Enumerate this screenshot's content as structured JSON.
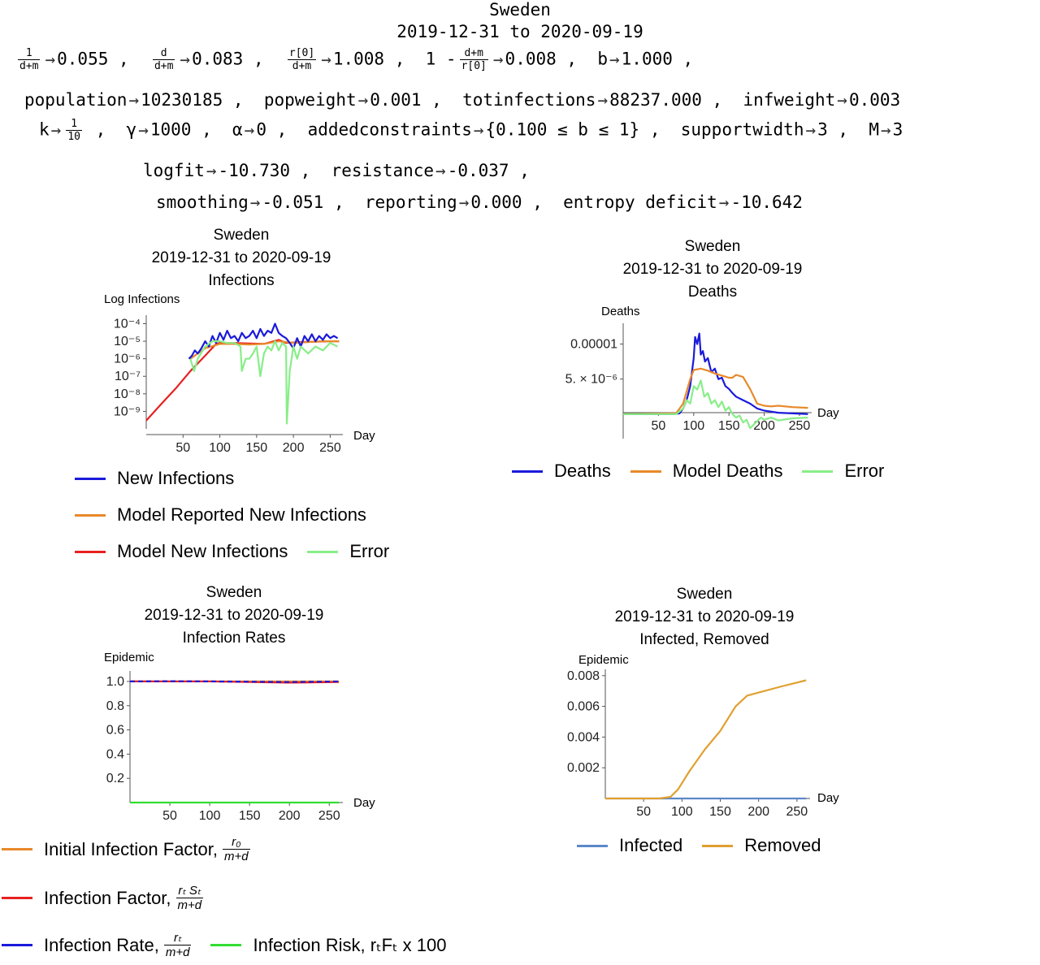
{
  "header": {
    "country": "Sweden",
    "date_range": "2019-12-31 to 2020-09-19",
    "row1": [
      {
        "num": "1",
        "den": "d+m",
        "value": "0.055"
      },
      {
        "num": "d",
        "den": "d+m",
        "value": "0.083"
      },
      {
        "num": "r[0]",
        "den": "d+m",
        "value": "1.008"
      },
      {
        "prefix": "1 -",
        "num": "d+m",
        "den": "r[0]",
        "value": "0.008"
      },
      {
        "name": "b",
        "value": "1.000"
      }
    ],
    "row2": [
      {
        "name": "population",
        "value": "10230185"
      },
      {
        "name": "popweight",
        "value": "0.001"
      },
      {
        "name": "totinfections",
        "value": "88237.000"
      },
      {
        "name": "infweight",
        "value": "0.003"
      }
    ],
    "row3": {
      "k_name": "k",
      "k_num": "1",
      "k_den": "10",
      "gamma_name": "γ",
      "gamma_value": "1000",
      "alpha_name": "α",
      "alpha_value": "0",
      "ac_name": "addedconstraints",
      "ac_value": "{0.100 ≤ b ≤ 1}",
      "sw_name": "supportwidth",
      "sw_value": "3",
      "m_name": "M",
      "m_value": "3"
    },
    "row4": [
      {
        "name": "logfit",
        "value": "-10.730"
      },
      {
        "name": "resistance",
        "value": "-0.037"
      }
    ],
    "row5": [
      {
        "name": "smoothing",
        "value": "-0.051"
      },
      {
        "name": "reporting",
        "value": "0.000"
      },
      {
        "name": "entropy deficit",
        "value": "-10.642"
      }
    ]
  },
  "legends": {
    "infections": [
      {
        "label": "New Infections",
        "color": "#1a1adb"
      },
      {
        "label": "Model Reported New Infections",
        "color": "#e8892a"
      },
      {
        "label": "Model New Infections",
        "color": "#e82020"
      },
      {
        "label": "Error",
        "color": "#88ee88"
      }
    ],
    "deaths": [
      {
        "label": "Deaths",
        "color": "#1a1adb"
      },
      {
        "label": "Model Deaths",
        "color": "#e8892a"
      },
      {
        "label": "Error",
        "color": "#88ee88"
      }
    ],
    "rates": [
      {
        "label": "Initial Infection Factor,",
        "color": "#e8892a",
        "num": "r₀",
        "den": "m+d"
      },
      {
        "label": "Infection Factor,",
        "color": "#e82020",
        "num": "rₜ Sₜ",
        "den": "m+d"
      },
      {
        "label": "Infection Rate,",
        "color": "#1a1adb",
        "num": "rₜ",
        "den": "m+d"
      },
      {
        "label": "Infection Risk, rₜFₜ x 100",
        "color": "#33dd33"
      }
    ],
    "epidemic": [
      {
        "label": "Infected",
        "color": "#5b88c8"
      },
      {
        "label": "Removed",
        "color": "#e0a030"
      }
    ]
  },
  "chart_data": [
    {
      "type": "line",
      "title": "Sweden",
      "subtitle": "2019-12-31 to 2020-09-19",
      "subtitle2": "Infections",
      "xlabel": "Day",
      "ylabel": "Log Infections",
      "yscale": "log",
      "xlim": [
        0,
        265
      ],
      "ylim": [
        1e-10,
        0.0002
      ],
      "xticks": [
        50,
        100,
        150,
        200,
        250
      ],
      "xtick_labels": [
        "50",
        "100",
        "150",
        "200",
        "250"
      ],
      "yticks": [
        1e-09,
        1e-08,
        1e-07,
        1e-06,
        1e-05,
        0.0001
      ],
      "ytick_labels": [
        "10⁻⁹",
        "10⁻⁸",
        "10⁻⁷",
        "10⁻⁶",
        "10⁻⁵",
        "10⁻⁴"
      ],
      "series": [
        {
          "name": "Model New Infections",
          "color": "#e82020",
          "x": [
            0,
            20,
            40,
            60,
            80,
            95,
            100,
            120,
            140,
            160,
            180,
            190,
            210,
            230,
            250,
            262
          ],
          "y": [
            3e-10,
            2.5e-09,
            2e-08,
            2e-07,
            1.5e-06,
            7e-06,
            8e-06,
            8e-06,
            7.5e-06,
            7e-06,
            1.2e-05,
            8e-06,
            9e-06,
            9.5e-06,
            1e-05,
            1e-05
          ]
        },
        {
          "name": "Model Reported New Infections",
          "color": "#e8892a",
          "x": [
            60,
            80,
            100,
            120,
            140,
            160,
            180,
            200,
            220,
            240,
            262
          ],
          "y": [
            1e-06,
            4e-06,
            7e-06,
            7e-06,
            6.5e-06,
            7e-06,
            1e-05,
            8e-06,
            9e-06,
            1e-05,
            1e-05
          ]
        },
        {
          "name": "New Infections",
          "color": "#1a1adb",
          "x": [
            58,
            62,
            66,
            70,
            75,
            80,
            85,
            90,
            95,
            100,
            105,
            110,
            115,
            120,
            125,
            130,
            135,
            140,
            145,
            150,
            155,
            160,
            165,
            170,
            175,
            180,
            185,
            190,
            195,
            200,
            205,
            210,
            215,
            220,
            225,
            230,
            235,
            240,
            245,
            250,
            255,
            260
          ],
          "y": [
            1e-06,
            1.5e-06,
            3e-06,
            2e-06,
            4e-06,
            1e-05,
            5e-06,
            2e-05,
            8e-06,
            3e-05,
            1.2e-05,
            4e-05,
            1.5e-05,
            2e-05,
            1e-05,
            3e-05,
            1.5e-05,
            2e-05,
            4e-05,
            1.5e-05,
            5e-05,
            2e-05,
            4e-05,
            3e-05,
            0.0001,
            3e-05,
            2e-05,
            1.5e-05,
            8e-06,
            4e-06,
            1.5e-05,
            5e-06,
            2e-05,
            1e-05,
            2.5e-05,
            1e-05,
            2e-05,
            1.2e-05,
            2.5e-05,
            1.5e-05,
            2e-05,
            1.5e-05
          ]
        },
        {
          "name": "Error",
          "color": "#88ee88",
          "x": [
            60,
            65,
            70,
            80,
            90,
            100,
            110,
            120,
            128,
            130,
            135,
            140,
            145,
            150,
            155,
            160,
            165,
            170,
            175,
            180,
            185,
            190,
            191,
            195,
            200,
            205,
            210,
            220,
            230,
            240,
            250,
            260
          ],
          "y": [
            1e-06,
            2e-07,
            1e-06,
            5e-06,
            1e-05,
            1e-05,
            8e-06,
            8e-06,
            5e-06,
            2e-07,
            1e-06,
            1e-06,
            2e-06,
            5e-06,
            1e-07,
            2e-06,
            5e-06,
            3e-06,
            1e-05,
            3e-06,
            8e-06,
            5e-06,
            2e-10,
            2e-07,
            5e-06,
            1e-06,
            5e-06,
            2e-06,
            5e-06,
            3e-06,
            8e-06,
            5e-06
          ]
        }
      ]
    },
    {
      "type": "line",
      "title": "Sweden",
      "subtitle": "2019-12-31 to 2020-09-19",
      "subtitle2": "Deaths",
      "xlabel": "Day",
      "ylabel": "Deaths",
      "xlim": [
        0,
        265
      ],
      "ylim": [
        -3.5e-06,
        1.25e-05
      ],
      "xticks": [
        50,
        100,
        150,
        200,
        250
      ],
      "xtick_labels": [
        "50",
        "100",
        "150",
        "200",
        "250"
      ],
      "yticks": [
        5e-06,
        1e-05
      ],
      "ytick_labels": [
        "5. × 10⁻⁶",
        "0.00001"
      ],
      "series": [
        {
          "name": "Deaths",
          "color": "#1a1adb",
          "x": [
            0,
            70,
            80,
            85,
            90,
            95,
            100,
            102,
            105,
            108,
            110,
            113,
            116,
            120,
            125,
            130,
            135,
            140,
            145,
            150,
            155,
            160,
            170,
            180,
            190,
            200,
            220,
            240,
            262
          ],
          "y": [
            0,
            0,
            1e-07,
            8e-07,
            2e-06,
            4e-06,
            8e-06,
            1.1e-05,
            1e-05,
            1.15e-05,
            8.5e-06,
            9e-06,
            7.5e-06,
            8e-06,
            6e-06,
            6.5e-06,
            5e-06,
            5.2e-06,
            4e-06,
            3.6e-06,
            3e-06,
            2.5e-06,
            2e-06,
            1.5e-06,
            8e-07,
            5e-07,
            2e-07,
            1e-07,
            0
          ]
        },
        {
          "name": "Model Deaths",
          "color": "#e8892a",
          "x": [
            0,
            75,
            85,
            95,
            100,
            110,
            120,
            130,
            140,
            150,
            155,
            160,
            170,
            180,
            190,
            200,
            210,
            220,
            240,
            262
          ],
          "y": [
            0,
            1e-07,
            1.5e-06,
            5e-06,
            6.3e-06,
            6.5e-06,
            6.2e-06,
            5.8e-06,
            5.5e-06,
            5.2e-06,
            5.2e-06,
            5.6e-06,
            5.3e-06,
            3.6e-06,
            1.5e-06,
            1.2e-06,
            1.1e-06,
            1.2e-06,
            1e-06,
            9e-07
          ]
        },
        {
          "name": "Error",
          "color": "#88ee88",
          "x": [
            0,
            75,
            85,
            90,
            95,
            100,
            105,
            110,
            115,
            120,
            125,
            130,
            135,
            140,
            145,
            150,
            155,
            160,
            165,
            170,
            175,
            180,
            185,
            190,
            195,
            200,
            210,
            220,
            240,
            262
          ],
          "y": [
            0,
            0,
            8e-07,
            2e-06,
            1.5e-06,
            4e-06,
            3.5e-06,
            4.8e-06,
            2.5e-06,
            3e-06,
            1.5e-06,
            2e-06,
            1e-06,
            1.8e-06,
            5e-07,
            1e-06,
            0,
            -5e-07,
            -2e-07,
            -1.2e-06,
            -8e-07,
            -2e-06,
            -1.5e-06,
            -1e-06,
            -5e-07,
            -8e-07,
            -5e-07,
            -9e-07,
            -6e-07,
            -5e-07
          ]
        }
      ]
    },
    {
      "type": "line",
      "title": "Sweden",
      "subtitle": "2019-12-31 to 2020-09-19",
      "subtitle2": "Infection Rates",
      "xlabel": "Day",
      "ylabel": "Epidemic",
      "xlim": [
        0,
        265
      ],
      "ylim": [
        0,
        1.06
      ],
      "xticks": [
        50,
        100,
        150,
        200,
        250
      ],
      "xtick_labels": [
        "50",
        "100",
        "150",
        "200",
        "250"
      ],
      "yticks": [
        0.2,
        0.4,
        0.6,
        0.8,
        1.0
      ],
      "ytick_labels": [
        "0.2",
        "0.4",
        "0.6",
        "0.8",
        "1.0"
      ],
      "series": [
        {
          "name": "Initial Infection Factor",
          "color": "#e8892a",
          "x": [
            0,
            262
          ],
          "y": [
            1.0,
            1.0
          ]
        },
        {
          "name": "Infection Factor",
          "color": "#e82020",
          "x": [
            0,
            100,
            150,
            200,
            262
          ],
          "y": [
            1.0,
            1.0,
            0.995,
            0.99,
            0.995
          ]
        },
        {
          "name": "Infection Rate",
          "color": "#1a1adb",
          "x": [
            0,
            50,
            100,
            150,
            200,
            262
          ],
          "y": [
            1.0,
            1.002,
            1.0,
            0.998,
            0.995,
            1.0
          ]
        },
        {
          "name": "Infection Risk",
          "color": "#33dd33",
          "x": [
            0,
            262
          ],
          "y": [
            0.0,
            0.0
          ]
        }
      ]
    },
    {
      "type": "line",
      "title": "Sweden",
      "subtitle": "2019-12-31 to 2020-09-19",
      "subtitle2": "Infected, Removed",
      "xlabel": "Day",
      "ylabel": "Epidemic",
      "xlim": [
        0,
        265
      ],
      "ylim": [
        0,
        0.0082
      ],
      "xticks": [
        50,
        100,
        150,
        200,
        250
      ],
      "xtick_labels": [
        "50",
        "100",
        "150",
        "200",
        "250"
      ],
      "yticks": [
        0.002,
        0.004,
        0.006,
        0.008
      ],
      "ytick_labels": [
        "0.002",
        "0.004",
        "0.006",
        "0.008"
      ],
      "series": [
        {
          "name": "Infected",
          "color": "#5b88c8",
          "x": [
            0,
            262
          ],
          "y": [
            0,
            0
          ]
        },
        {
          "name": "Removed",
          "color": "#e0a030",
          "x": [
            0,
            70,
            85,
            95,
            110,
            130,
            150,
            170,
            185,
            200,
            230,
            262
          ],
          "y": [
            0,
            0,
            0.0001,
            0.0006,
            0.0018,
            0.0032,
            0.0044,
            0.006,
            0.0067,
            0.0069,
            0.0073,
            0.0077
          ]
        }
      ]
    }
  ]
}
